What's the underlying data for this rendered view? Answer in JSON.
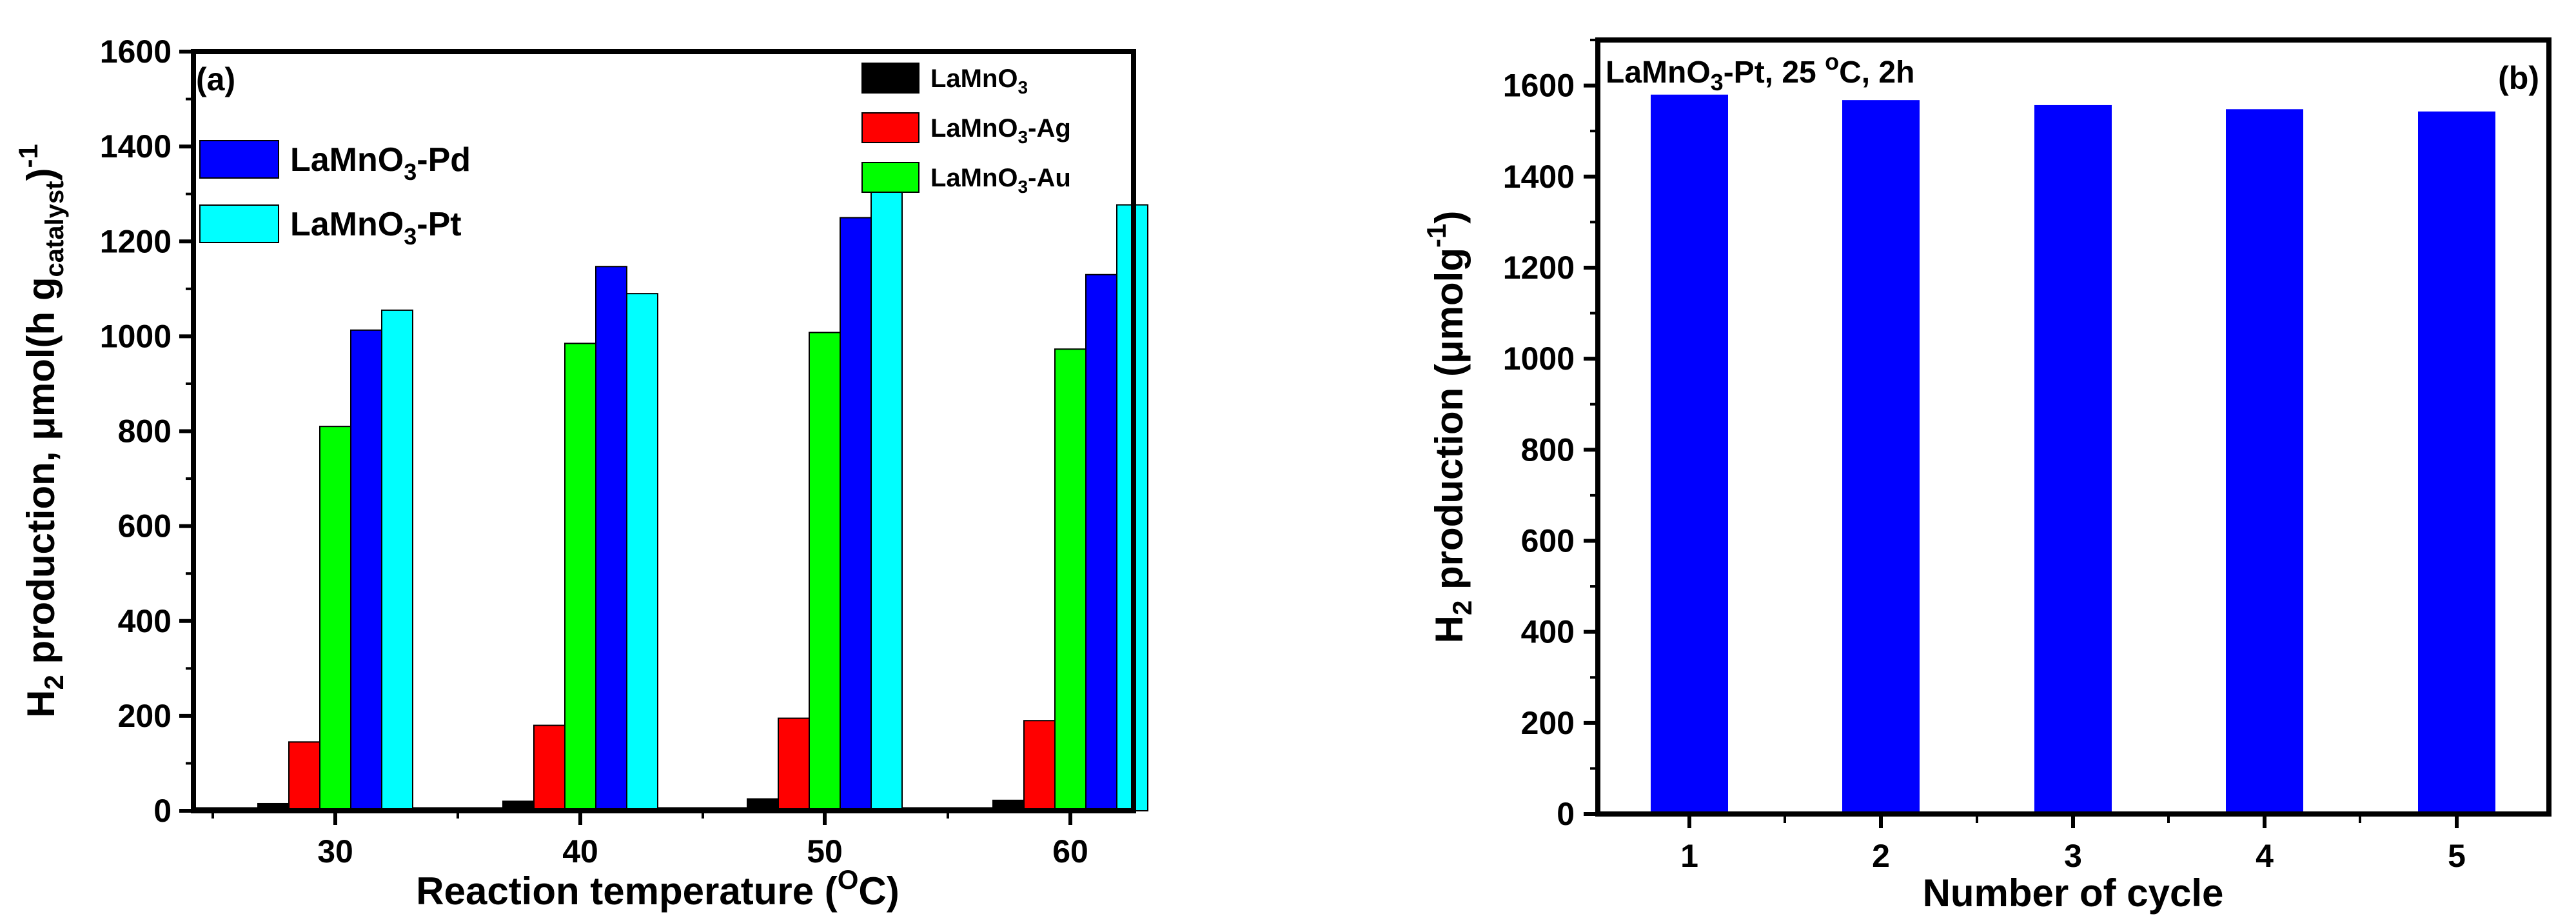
{
  "chart_data": [
    {
      "type": "bar",
      "panel": "(a)",
      "xlabel": "Reaction temperature (",
      "xlabel_sup": "O",
      "xlabel_tail": "C)",
      "ylabel_parts": {
        "a": "H",
        "a_sub": "2",
        "b": " production, ",
        "mu": "μ",
        "c": "mol(h g",
        "c_sub": "catalyst",
        "d": ")",
        "d_sup": "-1"
      },
      "ylim": [
        0,
        1600
      ],
      "yticks": [
        0,
        200,
        400,
        600,
        800,
        1000,
        1200,
        1400,
        1600
      ],
      "categories": [
        "30",
        "40",
        "50",
        "60"
      ],
      "series": [
        {
          "name": "LaMnO",
          "sub": "3",
          "tail": "",
          "color": "#000000",
          "values": [
            15,
            20,
            25,
            22
          ]
        },
        {
          "name": "LaMnO",
          "sub": "3",
          "tail": "-Ag",
          "color": "#ff0000",
          "values": [
            145,
            180,
            195,
            190
          ]
        },
        {
          "name": "LaMnO",
          "sub": "3",
          "tail": "-Au",
          "color": "#00ff00",
          "values": [
            810,
            985,
            1008,
            973
          ]
        },
        {
          "name": "LaMnO",
          "sub": "3",
          "tail": "-Pd",
          "color": "#0000ff",
          "values": [
            1013,
            1147,
            1250,
            1130
          ]
        },
        {
          "name": "LaMnO",
          "sub": "3",
          "tail": "-Pt",
          "color": "#00ffff",
          "values": [
            1055,
            1090,
            1342,
            1277
          ]
        }
      ]
    },
    {
      "type": "bar",
      "panel": "(b)",
      "annotation": {
        "a": "LaMnO",
        "a_sub": "3",
        "b": "-Pt, 25 ",
        "b_sup": "o",
        "c": "C, 2h"
      },
      "xlabel": "Number of cycle",
      "ylabel_parts": {
        "a": "H",
        "a_sub": "2",
        "b": " production (",
        "mu": "μ",
        "c": "molg",
        "c_sup": "-1",
        "d": ")"
      },
      "ylim": [
        0,
        1700
      ],
      "yticks": [
        0,
        200,
        400,
        600,
        800,
        1000,
        1200,
        1400,
        1600
      ],
      "categories": [
        "1",
        "2",
        "3",
        "4",
        "5"
      ],
      "values": [
        1580,
        1568,
        1557,
        1548,
        1543
      ],
      "color": "#0000ff"
    }
  ]
}
